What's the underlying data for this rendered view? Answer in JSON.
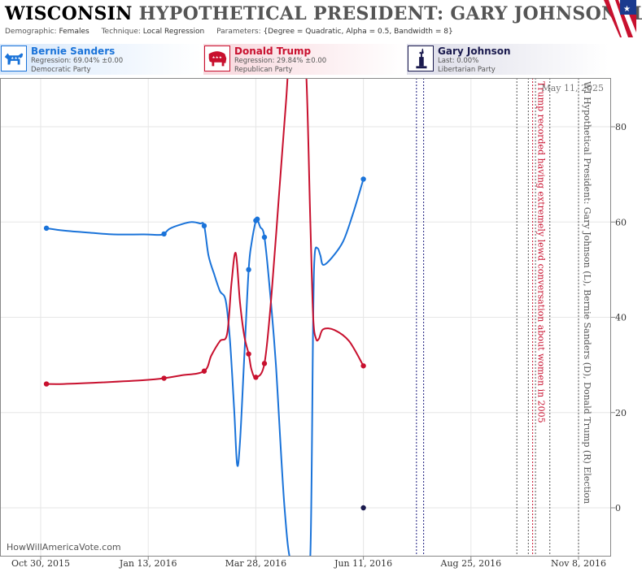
{
  "title": {
    "state": "WISCONSIN",
    "rest": "HYPOTHETICAL PRESIDENT: GARY JOHNSON (L) I"
  },
  "subtitle": {
    "demographic_label": "Demographic:",
    "demographic": "Females",
    "technique_label": "Technique:",
    "technique": "Local Regression",
    "parameters_label": "Parameters:",
    "parameters": "{Degree = Quadratic, Alpha = 0.5, Bandwidth = 8}"
  },
  "candidates": [
    {
      "name": "Bernie Sanders",
      "line1": "Regression: 69.04% ±0.00",
      "line2": "Democratic Party",
      "color": "#1a73d9",
      "icon": "donkey-icon"
    },
    {
      "name": "Donald Trump",
      "line1": "Regression: 29.84% ±0.00",
      "line2": "Republican Party",
      "color": "#c8102e",
      "icon": "elephant-icon"
    },
    {
      "name": "Gary Johnson",
      "line1": "Last: 0.00%",
      "line2": "Libertarian Party",
      "color": "#1a1a4e",
      "icon": "liberty-icon"
    }
  ],
  "date_stamp": "May 11, 2025",
  "credit": "HowWillAmericaVote.com",
  "chart_data": {
    "type": "line",
    "ylim": [
      -10,
      90
    ],
    "yticks": [
      0,
      20,
      40,
      60,
      80
    ],
    "xticks": [
      "Oct 30, 2015",
      "Jan 13, 2016",
      "Mar 28, 2016",
      "Jun 11, 2016",
      "Aug 25, 2016",
      "Nov 8, 2016"
    ],
    "xdomain": [
      "2015-10-30",
      "2016-11-08"
    ],
    "series": [
      {
        "name": "Bernie Sanders",
        "color": "#1a73d9",
        "points": [
          [
            "2015-11-03",
            58.7
          ],
          [
            "2016-01-24",
            57.5
          ],
          [
            "2016-02-21",
            59.2
          ],
          [
            "2016-03-23",
            50.0
          ],
          [
            "2016-03-28",
            60.3
          ],
          [
            "2016-03-29",
            60.6
          ],
          [
            "2016-04-03",
            56.8
          ],
          [
            "2016-06-11",
            69.0
          ]
        ],
        "curve": [
          [
            "2015-11-03",
            58.7
          ],
          [
            "2015-11-15",
            58.2
          ],
          [
            "2015-12-01",
            57.8
          ],
          [
            "2015-12-20",
            57.4
          ],
          [
            "2016-01-10",
            57.4
          ],
          [
            "2016-01-20",
            57.3
          ],
          [
            "2016-01-24",
            57.5
          ],
          [
            "2016-01-28",
            58.6
          ],
          [
            "2016-02-05",
            59.5
          ],
          [
            "2016-02-12",
            60.0
          ],
          [
            "2016-02-18",
            59.7
          ],
          [
            "2016-02-21",
            59.2
          ],
          [
            "2016-02-24",
            53.0
          ],
          [
            "2016-02-28",
            49.0
          ],
          [
            "2016-03-03",
            45.5
          ],
          [
            "2016-03-07",
            43.5
          ],
          [
            "2016-03-10",
            35.0
          ],
          [
            "2016-03-13",
            20.0
          ],
          [
            "2016-03-15",
            9.0
          ],
          [
            "2016-03-17",
            14.0
          ],
          [
            "2016-03-20",
            32.0
          ],
          [
            "2016-03-23",
            50.0
          ],
          [
            "2016-03-25",
            55.5
          ],
          [
            "2016-03-28",
            60.3
          ],
          [
            "2016-03-29",
            60.6
          ],
          [
            "2016-03-31",
            59.0
          ],
          [
            "2016-04-03",
            56.8
          ],
          [
            "2016-04-07",
            45.0
          ],
          [
            "2016-04-11",
            30.0
          ],
          [
            "2016-04-17",
            0.0
          ],
          [
            "2016-04-22",
            -12.0
          ],
          [
            "2016-05-01",
            -12.0
          ],
          [
            "2016-05-05",
            -10.0
          ],
          [
            "2016-05-07",
            40.0
          ],
          [
            "2016-05-08",
            53.0
          ],
          [
            "2016-05-10",
            54.5
          ],
          [
            "2016-05-12",
            53.0
          ],
          [
            "2016-05-14",
            51.0
          ],
          [
            "2016-05-20",
            52.5
          ],
          [
            "2016-05-28",
            56.0
          ],
          [
            "2016-06-04",
            62.0
          ],
          [
            "2016-06-11",
            69.0
          ]
        ]
      },
      {
        "name": "Donald Trump",
        "color": "#c8102e",
        "points": [
          [
            "2015-11-03",
            26.0
          ],
          [
            "2016-01-24",
            27.2
          ],
          [
            "2016-02-21",
            28.7
          ],
          [
            "2016-03-23",
            32.3
          ],
          [
            "2016-03-28",
            27.4
          ],
          [
            "2016-04-03",
            30.3
          ],
          [
            "2016-06-11",
            29.8
          ]
        ],
        "curve": [
          [
            "2015-11-03",
            26.0
          ],
          [
            "2015-11-15",
            26.0
          ],
          [
            "2015-12-10",
            26.3
          ],
          [
            "2016-01-10",
            26.8
          ],
          [
            "2016-01-24",
            27.2
          ],
          [
            "2016-02-05",
            27.8
          ],
          [
            "2016-02-21",
            28.7
          ],
          [
            "2016-02-26",
            32.0
          ],
          [
            "2016-03-03",
            35.0
          ],
          [
            "2016-03-08",
            36.5
          ],
          [
            "2016-03-11",
            47.0
          ],
          [
            "2016-03-14",
            53.5
          ],
          [
            "2016-03-17",
            43.0
          ],
          [
            "2016-03-20",
            36.0
          ],
          [
            "2016-03-23",
            32.3
          ],
          [
            "2016-03-25",
            29.0
          ],
          [
            "2016-03-28",
            27.4
          ],
          [
            "2016-04-03",
            30.3
          ],
          [
            "2016-04-08",
            45.0
          ],
          [
            "2016-04-13",
            65.0
          ],
          [
            "2016-04-18",
            85.0
          ],
          [
            "2016-04-21",
            96.0
          ],
          [
            "2016-04-28",
            96.0
          ],
          [
            "2016-05-02",
            92.0
          ],
          [
            "2016-05-05",
            60.0
          ],
          [
            "2016-05-07",
            40.0
          ],
          [
            "2016-05-09",
            35.5
          ],
          [
            "2016-05-11",
            35.5
          ],
          [
            "2016-05-14",
            37.5
          ],
          [
            "2016-05-22",
            37.3
          ],
          [
            "2016-06-01",
            35.0
          ],
          [
            "2016-06-11",
            29.8
          ]
        ]
      },
      {
        "name": "Gary Johnson",
        "color": "#1a1a4e",
        "points": [
          [
            "2016-06-11",
            0.0
          ]
        ],
        "curve": []
      }
    ],
    "event_lines": [
      {
        "date": "2016-07-18",
        "color": "#1a1a7e"
      },
      {
        "date": "2016-07-23",
        "color": "#1a1a7e"
      },
      {
        "date": "2016-09-26",
        "color": "#555555"
      },
      {
        "date": "2016-10-04",
        "color": "#555555"
      },
      {
        "date": "2016-10-07",
        "color": "#c8102e"
      },
      {
        "date": "2016-10-09",
        "color": "#555555"
      },
      {
        "date": "2016-10-19",
        "color": "#555555"
      },
      {
        "date": "2016-11-08",
        "color": "#555555"
      }
    ],
    "annotations": [
      {
        "text": "Trump recorded having extremely lewd conversation about women in 2005",
        "color": "#c8102e",
        "date": "2016-10-07"
      },
      {
        "text": "WI Hypothetical President: Gary Johnson (L), Bernie Sanders (D), Donald Trump (R) Election",
        "color": "#555555",
        "date": "2016-11-08"
      }
    ]
  }
}
